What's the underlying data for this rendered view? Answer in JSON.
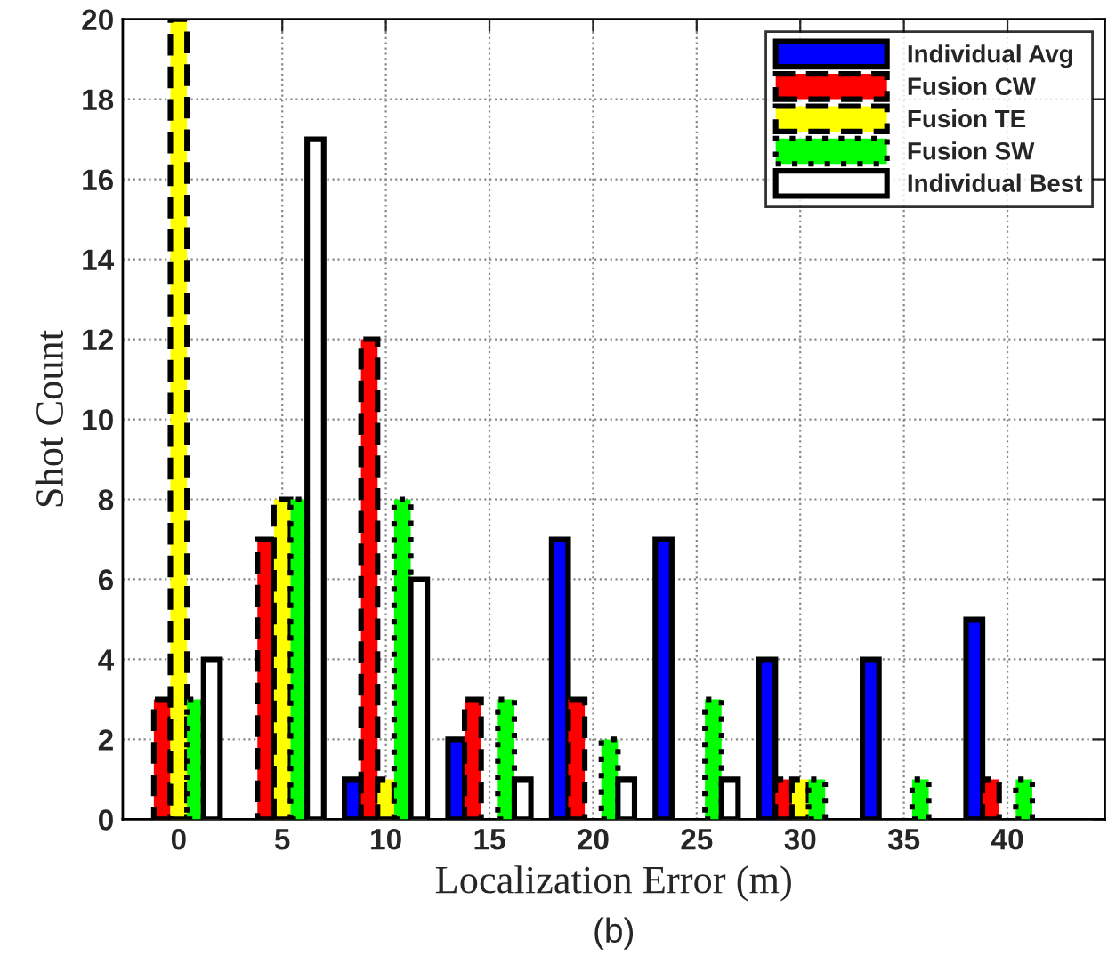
{
  "chart_data": {
    "type": "bar",
    "xlabel": "Localization Error (m)",
    "ylabel": "Shot Count",
    "x": [
      0,
      5,
      10,
      15,
      20,
      25,
      30,
      35,
      40
    ],
    "series": [
      {
        "name": "Individual Avg",
        "color": "#0000ff",
        "line_style": "solid",
        "values": [
          0,
          0,
          1,
          2,
          7,
          7,
          4,
          4,
          5
        ]
      },
      {
        "name": "Fusion CW",
        "color": "#ff0000",
        "line_style": "dashed",
        "values": [
          3,
          7,
          12,
          3,
          3,
          0,
          1,
          0,
          1
        ]
      },
      {
        "name": "Fusion TE",
        "color": "#ffff00",
        "line_style": "dashed",
        "values": [
          20,
          8,
          1,
          0,
          0,
          0,
          1,
          0,
          0
        ]
      },
      {
        "name": "Fusion SW",
        "color": "#00ff00",
        "line_style": "dotted",
        "values": [
          3,
          8,
          8,
          3,
          2,
          3,
          1,
          1,
          1
        ]
      },
      {
        "name": "Individual Best",
        "color": "#ffffff",
        "line_style": "solid",
        "values": [
          4,
          17,
          6,
          1,
          1,
          1,
          0,
          0,
          0
        ]
      }
    ],
    "xlim": [
      -2.7,
      44.7
    ],
    "ylim": [
      0,
      20
    ],
    "xticks": [
      0,
      5,
      10,
      15,
      20,
      25,
      30,
      35,
      40
    ],
    "yticks": [
      0,
      2,
      4,
      6,
      8,
      10,
      12,
      14,
      16,
      18,
      20
    ],
    "grid": true,
    "legend": "top right",
    "annotations": [
      "(b)"
    ]
  }
}
